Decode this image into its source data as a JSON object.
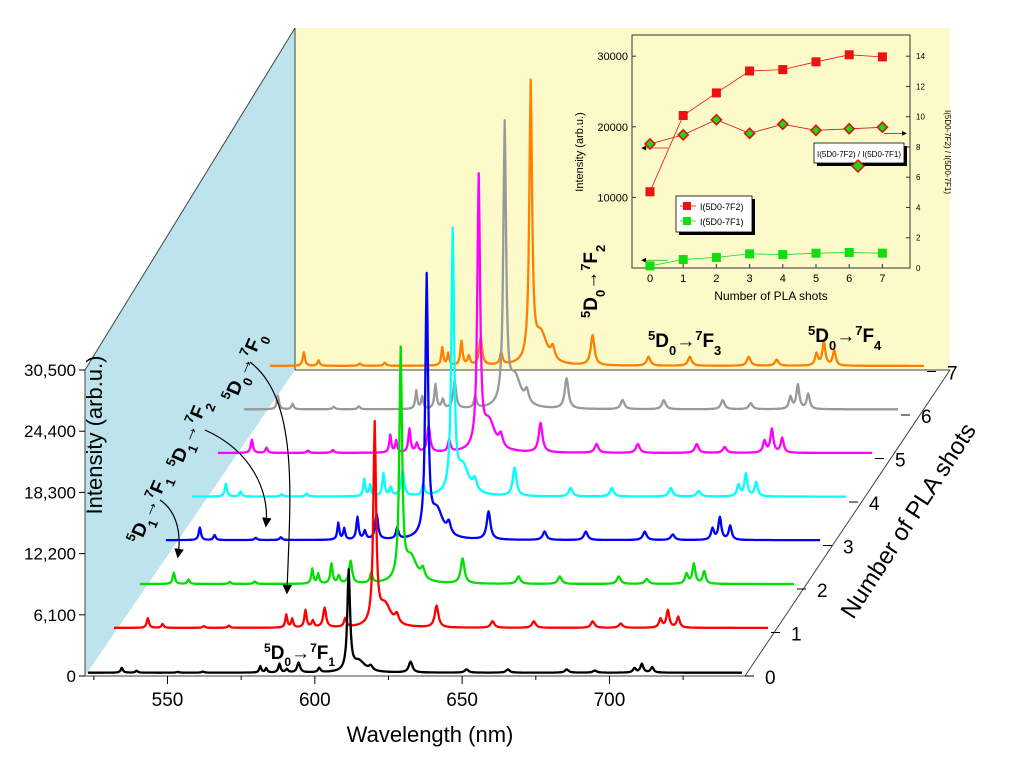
{
  "chart_data": {
    "type": "line",
    "title": "",
    "xlabel": "Wavelength (nm)",
    "ylabel": "Intensity (arb.u.)",
    "zlabel": "Number of PLA shots",
    "xlim": [
      522,
      746
    ],
    "xticks": [
      550,
      600,
      650,
      700
    ],
    "yticks": [
      0,
      6100,
      12200,
      18300,
      24400,
      30500
    ],
    "ytick_labels": [
      "0",
      "6,100",
      "12,200",
      "18,300",
      "24,400",
      "30,500"
    ],
    "shots": [
      "0",
      "1",
      "2",
      "3",
      "4",
      "5",
      "6",
      "7"
    ],
    "series_colors": [
      "#000000",
      "#ff0000",
      "#00e000",
      "#0000ff",
      "#00ffff",
      "#ff00ff",
      "#999999",
      "#ff8000"
    ],
    "peaks": [
      {
        "wavelength": 534.5,
        "fwhm": 0.9,
        "rel": 0.045
      },
      {
        "wavelength": 539.5,
        "fwhm": 0.9,
        "rel": 0.018
      },
      {
        "wavelength": 553.5,
        "fwhm": 1.0,
        "rel": 0.008
      },
      {
        "wavelength": 562.0,
        "fwhm": 1.0,
        "rel": 0.01
      },
      {
        "wavelength": 581.5,
        "fwhm": 0.8,
        "rel": 0.06
      },
      {
        "wavelength": 583.5,
        "fwhm": 0.8,
        "rel": 0.04
      },
      {
        "wavelength": 588.0,
        "fwhm": 0.9,
        "rel": 0.08
      },
      {
        "wavelength": 590.5,
        "fwhm": 1.0,
        "rel": 0.03
      },
      {
        "wavelength": 594.5,
        "fwhm": 1.2,
        "rel": 0.09
      },
      {
        "wavelength": 601.5,
        "fwhm": 1.0,
        "rel": 0.04
      },
      {
        "wavelength": 611.5,
        "fwhm": 1.1,
        "rel": 0.92
      },
      {
        "wavelength": 615.0,
        "fwhm": 5.0,
        "rel": 0.1
      },
      {
        "wavelength": 619.0,
        "fwhm": 1.5,
        "rel": 0.04
      },
      {
        "wavelength": 632.5,
        "fwhm": 1.5,
        "rel": 0.1
      },
      {
        "wavelength": 651.5,
        "fwhm": 1.5,
        "rel": 0.03
      },
      {
        "wavelength": 665.5,
        "fwhm": 1.5,
        "rel": 0.03
      },
      {
        "wavelength": 685.5,
        "fwhm": 1.5,
        "rel": 0.03
      },
      {
        "wavelength": 695.0,
        "fwhm": 1.5,
        "rel": 0.02
      },
      {
        "wavelength": 708.5,
        "fwhm": 1.2,
        "rel": 0.04
      },
      {
        "wavelength": 711.0,
        "fwhm": 1.2,
        "rel": 0.08
      },
      {
        "wavelength": 714.5,
        "fwhm": 1.2,
        "rel": 0.05
      }
    ],
    "baseline_rel": 0.012,
    "annotations": {
      "bottom_transition": "5D0→7F1",
      "t_5d0_7f2": "5D0→7F2",
      "t_5d0_7f3": "5D0→7F3",
      "t_5d0_7f4": "5D0→7F4",
      "t_5d0_7f0": "5D0→7F0",
      "t_5d1_7f2": "5D1→7F2",
      "t_5d1_7f1": "5D1→7F1"
    },
    "inset": {
      "type": "scatter",
      "xlabel": "Number of PLA shots",
      "ylabel_left": "Intensity (arb.u.)",
      "ylabel_right": "I(5D0-7F2) / I(5D0-7F1)",
      "ratio_label": "I(5D0-7F2) / I(5D0-7F1)",
      "xticks": [
        0,
        1,
        2,
        3,
        4,
        5,
        6,
        7
      ],
      "ylim_left": [
        0,
        33000
      ],
      "yticks_left": [
        10000,
        20000,
        30000
      ],
      "ylim_right": [
        0,
        15.4
      ],
      "yticks_right": [
        0,
        2,
        4,
        6,
        8,
        10,
        12,
        14
      ],
      "legend": [
        "I(5D0-7F2)",
        "I(5D0-7F1)"
      ],
      "series": [
        {
          "name": "I(5D0-7F2)",
          "color": "#ee1111",
          "x": [
            0,
            1,
            2,
            3,
            4,
            5,
            6,
            7
          ],
          "values": [
            10800,
            21600,
            24800,
            27900,
            28100,
            29200,
            30200,
            29900
          ]
        },
        {
          "name": "I(5D0-7F1)",
          "color": "#11dd11",
          "x": [
            0,
            1,
            2,
            3,
            4,
            5,
            6,
            7
          ],
          "values": [
            300,
            1200,
            1500,
            2000,
            1900,
            2100,
            2200,
            2100
          ]
        },
        {
          "name": "I(5D0-7F2) / I(5D0-7F1)",
          "color": "#dd1111",
          "x": [
            0,
            1,
            2,
            3,
            4,
            5,
            6,
            7
          ],
          "values": [
            8.2,
            8.8,
            9.8,
            8.9,
            9.5,
            9.1,
            9.2,
            9.3
          ]
        }
      ]
    }
  }
}
